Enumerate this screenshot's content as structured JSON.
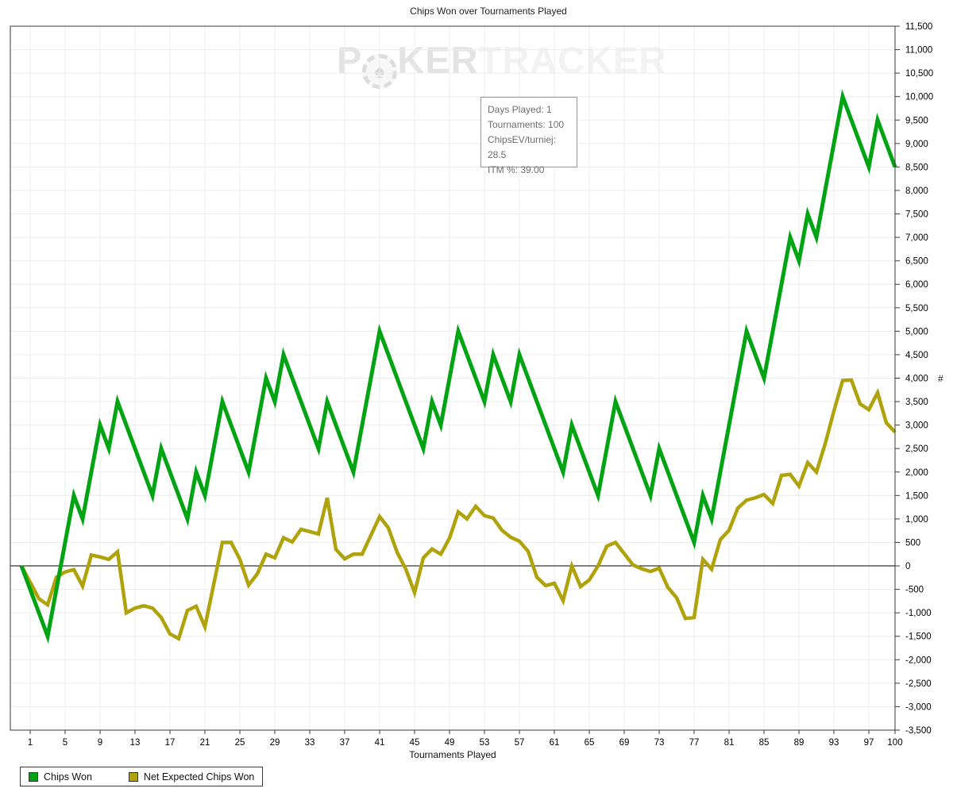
{
  "title": "Chips Won over Tournaments Played",
  "watermark": {
    "left": "P",
    "mid": "KER",
    "right": "TRACKER",
    "chip_symbol": "♠"
  },
  "info_box": {
    "days_played": "Days Played: 1",
    "tournaments": "Tournaments: 100",
    "chips_ev": "ChipsEV/turniej: 28.5",
    "itm": "ITM %: 39.00"
  },
  "axes": {
    "x_title": "Tournaments Played",
    "y_title": "#",
    "x_ticks": [
      1,
      5,
      9,
      13,
      17,
      21,
      25,
      29,
      33,
      37,
      41,
      45,
      49,
      53,
      57,
      61,
      65,
      69,
      73,
      77,
      81,
      85,
      89,
      93,
      97,
      100
    ],
    "y_min": -3500,
    "y_max": 11500,
    "y_step": 500
  },
  "legend": {
    "items": [
      {
        "label": "Chips Won",
        "color": "#00a413"
      },
      {
        "label": "Net Expected Chips Won",
        "color": "#b0a20a"
      }
    ]
  },
  "chart_data": {
    "type": "line",
    "title": "Chips Won over Tournaments Played",
    "xlabel": "Tournaments Played",
    "ylabel": "#",
    "x": {
      "start": 0,
      "end": 100,
      "step": 1
    },
    "xlim": [
      0,
      100
    ],
    "ylim": [
      -3500,
      11500
    ],
    "grid": true,
    "legend_position": "bottom-left",
    "series": [
      {
        "name": "Net Expected Chips Won",
        "color": "#b0a20a",
        "values": [
          0,
          -350,
          -700,
          -830,
          -240,
          -130,
          -80,
          -430,
          230,
          190,
          140,
          300,
          -1000,
          -900,
          -850,
          -900,
          -1100,
          -1450,
          -1550,
          -950,
          -860,
          -1300,
          -400,
          500,
          500,
          140,
          -410,
          -170,
          250,
          170,
          600,
          510,
          780,
          730,
          680,
          1450,
          350,
          150,
          250,
          250,
          650,
          1050,
          810,
          290,
          -70,
          -570,
          170,
          360,
          250,
          590,
          1150,
          1000,
          1270,
          1070,
          1020,
          760,
          610,
          525,
          310,
          -240,
          -420,
          -370,
          -740,
          0,
          -440,
          -300,
          0,
          420,
          500,
          260,
          20,
          -60,
          -120,
          -50,
          -460,
          -680,
          -1120,
          -1100,
          140,
          -70,
          560,
          760,
          1230,
          1400,
          1450,
          1520,
          1330,
          1930,
          1950,
          1700,
          2200,
          2000,
          2600,
          3300,
          3950,
          3960,
          3450,
          3330,
          3690,
          3050,
          2850
        ]
      },
      {
        "name": "Chips Won",
        "color": "#00a413",
        "values": [
          0,
          -500,
          -1000,
          -1500,
          -500,
          500,
          1500,
          1000,
          2000,
          3000,
          2500,
          3500,
          3000,
          2500,
          2000,
          1500,
          2500,
          2000,
          1500,
          1000,
          2000,
          1500,
          2500,
          3500,
          3000,
          2500,
          2000,
          3000,
          4000,
          3500,
          4500,
          4000,
          3500,
          3000,
          2500,
          3500,
          3000,
          2500,
          2000,
          3000,
          4000,
          5000,
          4500,
          4000,
          3500,
          3000,
          2500,
          3500,
          3000,
          4000,
          5000,
          4500,
          4000,
          3500,
          4500,
          4000,
          3500,
          4500,
          4000,
          3500,
          3000,
          2500,
          2000,
          3000,
          2500,
          2000,
          1500,
          2500,
          3500,
          3000,
          2500,
          2000,
          1500,
          2500,
          2000,
          1500,
          1000,
          500,
          1500,
          1000,
          2000,
          3000,
          4000,
          5000,
          4500,
          4000,
          5000,
          6000,
          7000,
          6500,
          7500,
          7000,
          8000,
          9000,
          10000,
          9500,
          9000,
          8500,
          9500,
          9000,
          8500
        ]
      }
    ]
  }
}
